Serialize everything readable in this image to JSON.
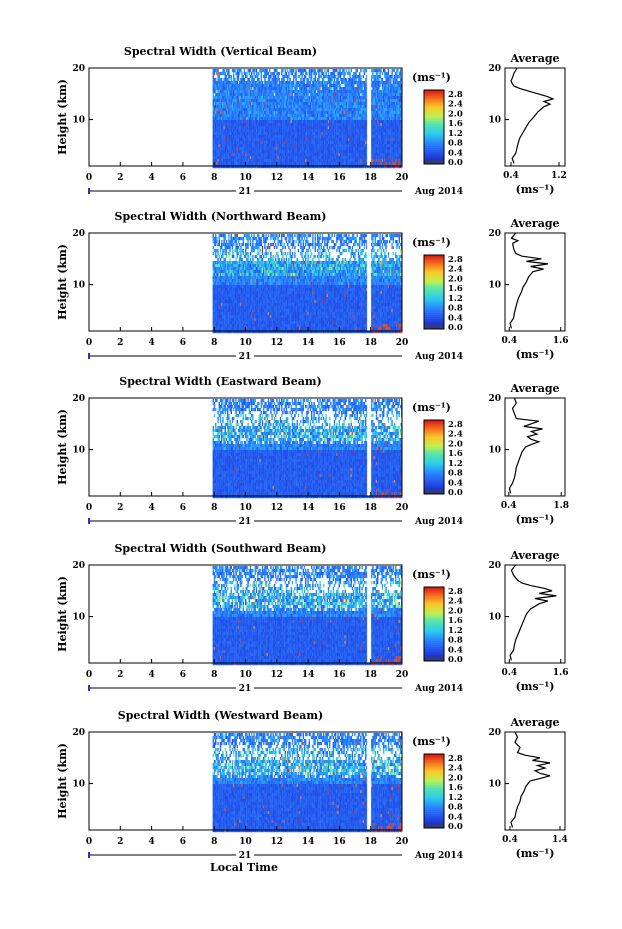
{
  "chart_data": [
    {
      "type": "heatmap",
      "title": "Spectral Width (Vertical Beam)",
      "ylabel": "Height (km)",
      "xticks": [
        "0",
        "2",
        "4",
        "6",
        "8",
        "10",
        "12",
        "14",
        "16",
        "18",
        "20"
      ],
      "yticks": [
        "10",
        "20"
      ],
      "xlim": [
        0,
        20
      ],
      "ylim": [
        1,
        20
      ],
      "data_start_hour": 7.9,
      "gap_hour": 17.9,
      "day_label": "21",
      "date_label": "Aug 2014",
      "colorbar": {
        "unit": "(ms⁻¹)",
        "ticks": [
          "0.0",
          "0.4",
          "0.8",
          "1.2",
          "1.6",
          "2.0",
          "2.4",
          "2.8"
        ]
      },
      "profile": {
        "title": "Average",
        "xlabel": "(ms⁻¹)",
        "xticks": [
          "0.4",
          "1.2"
        ],
        "yticks": [
          "10",
          "20"
        ],
        "xlim": [
          0.3,
          1.3
        ],
        "heights": [
          1.5,
          2.5,
          3.5,
          4.5,
          5.5,
          6.5,
          7.5,
          8.5,
          9.5,
          10.5,
          11.5,
          12.5,
          13,
          13.5,
          14,
          14.5,
          15,
          15.5,
          16,
          16.5,
          17,
          17.5,
          18,
          19,
          20
        ],
        "values": [
          0.45,
          0.42,
          0.48,
          0.5,
          0.52,
          0.55,
          0.6,
          0.65,
          0.7,
          0.78,
          0.85,
          0.95,
          1.05,
          0.95,
          1.1,
          1.0,
          0.85,
          0.7,
          0.55,
          0.45,
          0.42,
          0.4,
          0.42,
          0.45,
          0.5
        ]
      }
    },
    {
      "type": "heatmap",
      "title": "Spectral Width (Northward Beam)",
      "ylabel": "Height (km)",
      "xticks": [
        "0",
        "2",
        "4",
        "6",
        "8",
        "10",
        "12",
        "14",
        "16",
        "18",
        "20"
      ],
      "yticks": [
        "10",
        "20"
      ],
      "xlim": [
        0,
        20
      ],
      "ylim": [
        1,
        20
      ],
      "data_start_hour": 7.9,
      "gap_hour": 17.9,
      "day_label": "21",
      "date_label": "Aug 2014",
      "colorbar": {
        "unit": "(ms⁻¹)",
        "ticks": [
          "0.0",
          "0.4",
          "0.8",
          "1.2",
          "1.6",
          "2.0",
          "2.4",
          "2.8"
        ]
      },
      "profile": {
        "title": "Average",
        "xlabel": "(ms⁻¹)",
        "xticks": [
          "0.4",
          "1.6"
        ],
        "yticks": [
          "10",
          "20"
        ],
        "xlim": [
          0.3,
          1.7
        ],
        "heights": [
          1.5,
          2.5,
          3.5,
          4.5,
          5.5,
          6.5,
          7.5,
          8.5,
          9.5,
          10.5,
          11.5,
          12.5,
          13,
          13.5,
          14,
          14.5,
          15,
          15.5,
          16,
          17,
          18,
          18.5,
          19,
          19.5,
          20
        ],
        "values": [
          0.45,
          0.42,
          0.5,
          0.52,
          0.55,
          0.58,
          0.62,
          0.68,
          0.72,
          0.8,
          0.85,
          0.95,
          1.2,
          0.9,
          1.3,
          0.8,
          1.15,
          0.7,
          0.55,
          0.5,
          0.48,
          0.6,
          0.45,
          0.5,
          0.55
        ]
      }
    },
    {
      "type": "heatmap",
      "title": "Spectral Width (Eastward Beam)",
      "ylabel": "Height (km)",
      "xticks": [
        "0",
        "2",
        "4",
        "6",
        "8",
        "10",
        "12",
        "14",
        "16",
        "18",
        "20"
      ],
      "yticks": [
        "10",
        "20"
      ],
      "xlim": [
        0,
        20
      ],
      "ylim": [
        1,
        20
      ],
      "data_start_hour": 7.9,
      "gap_hour": 17.9,
      "day_label": "21",
      "date_label": "Aug 2014",
      "colorbar": {
        "unit": "(ms⁻¹)",
        "ticks": [
          "0.0",
          "0.4",
          "0.8",
          "1.2",
          "1.6",
          "2.0",
          "2.4",
          "2.8"
        ]
      },
      "profile": {
        "title": "Average",
        "xlabel": "(ms⁻¹)",
        "xticks": [
          "0.4",
          "1.8"
        ],
        "yticks": [
          "10",
          "20"
        ],
        "xlim": [
          0.3,
          1.9
        ],
        "heights": [
          1.5,
          2.5,
          3.5,
          4.5,
          5.5,
          6.5,
          7.5,
          8.5,
          9.5,
          10.5,
          11,
          11.5,
          12,
          12.5,
          13,
          13.5,
          14,
          14.5,
          15,
          15.5,
          16,
          17,
          18,
          19,
          20
        ],
        "values": [
          0.45,
          0.42,
          0.5,
          0.55,
          0.58,
          0.6,
          0.65,
          0.7,
          0.75,
          0.85,
          1.0,
          1.2,
          1.0,
          0.9,
          1.15,
          1.0,
          1.3,
          0.8,
          1.0,
          1.2,
          0.6,
          0.55,
          0.5,
          0.6,
          0.55
        ]
      }
    },
    {
      "type": "heatmap",
      "title": "Spectral Width (Southward Beam)",
      "ylabel": "Height (km)",
      "xticks": [
        "0",
        "2",
        "4",
        "6",
        "8",
        "10",
        "12",
        "14",
        "16",
        "18",
        "20"
      ],
      "yticks": [
        "10",
        "20"
      ],
      "xlim": [
        0,
        20
      ],
      "ylim": [
        1,
        20
      ],
      "data_start_hour": 7.9,
      "gap_hour": 17.9,
      "day_label": "21",
      "date_label": "Aug 2014",
      "colorbar": {
        "unit": "(ms⁻¹)",
        "ticks": [
          "0.0",
          "0.4",
          "0.8",
          "1.2",
          "1.6",
          "2.0",
          "2.4",
          "2.8"
        ]
      },
      "profile": {
        "title": "Average",
        "xlabel": "(ms⁻¹)",
        "xticks": [
          "0.4",
          "1.6"
        ],
        "yticks": [
          "10",
          "20"
        ],
        "xlim": [
          0.3,
          1.7
        ],
        "heights": [
          1.5,
          2.5,
          3.5,
          4.5,
          5.5,
          6.5,
          7.5,
          8.5,
          9.5,
          10.5,
          11.5,
          12,
          12.5,
          13,
          13.5,
          14,
          14.5,
          15,
          15.5,
          16,
          16.5,
          17,
          18,
          19,
          20
        ],
        "values": [
          0.45,
          0.42,
          0.5,
          0.52,
          0.55,
          0.6,
          0.65,
          0.7,
          0.75,
          0.8,
          0.9,
          1.0,
          1.1,
          1.3,
          1.0,
          1.5,
          1.1,
          1.4,
          1.2,
          0.9,
          0.7,
          0.6,
          0.5,
          0.45,
          0.55
        ]
      }
    },
    {
      "type": "heatmap",
      "title": "Spectral Width (Westward Beam)",
      "ylabel": "Height (km)",
      "xlabel": "Local Time",
      "xticks": [
        "0",
        "2",
        "4",
        "6",
        "8",
        "10",
        "12",
        "14",
        "16",
        "18",
        "20"
      ],
      "yticks": [
        "10",
        "20"
      ],
      "xlim": [
        0,
        20
      ],
      "ylim": [
        1,
        20
      ],
      "data_start_hour": 7.9,
      "gap_hour": 17.9,
      "day_label": "21",
      "date_label": "Aug 2014",
      "colorbar": {
        "unit": "(ms⁻¹)",
        "ticks": [
          "0.0",
          "0.4",
          "0.8",
          "1.2",
          "1.6",
          "2.0",
          "2.4",
          "2.8"
        ]
      },
      "profile": {
        "title": "Average",
        "xlabel": "(ms⁻¹)",
        "xticks": [
          "0.4",
          "1.4"
        ],
        "yticks": [
          "10",
          "20"
        ],
        "xlim": [
          0.3,
          1.5
        ],
        "heights": [
          1.5,
          2.5,
          3.5,
          4.5,
          5.5,
          6.5,
          7.5,
          8.5,
          9.5,
          10.5,
          11,
          11.5,
          12,
          12.5,
          13,
          13.5,
          14,
          14.5,
          15,
          15.5,
          16,
          17,
          18,
          19,
          20
        ],
        "values": [
          0.45,
          0.42,
          0.5,
          0.52,
          0.55,
          0.6,
          0.62,
          0.68,
          0.72,
          0.8,
          1.0,
          1.2,
          1.0,
          0.9,
          1.1,
          0.95,
          1.2,
          0.85,
          1.0,
          0.7,
          0.55,
          0.6,
          0.5,
          0.55,
          0.5
        ]
      }
    }
  ]
}
